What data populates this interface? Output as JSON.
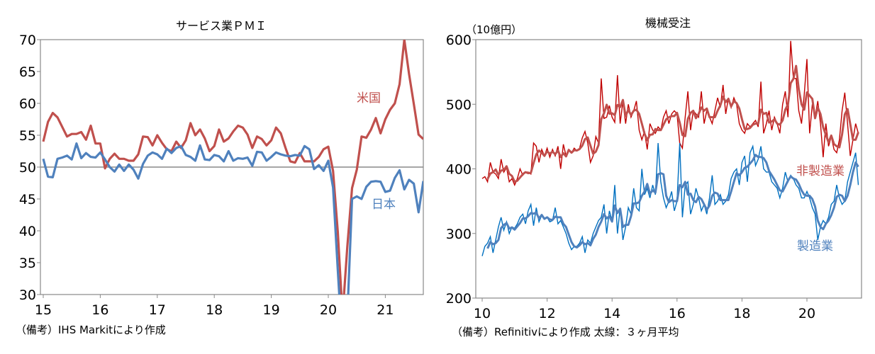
{
  "chart_data": [
    {
      "type": "line",
      "title": "サービス業ＰＭＩ",
      "note": "（備考）IHS Markitにより作成",
      "x_start": "2015-01",
      "x_frequency": "monthly",
      "xticks": [
        "15",
        "16",
        "17",
        "18",
        "19",
        "20",
        "21"
      ],
      "yticks": [
        30,
        35,
        40,
        45,
        50,
        55,
        60,
        65,
        70
      ],
      "ylim": [
        30,
        70
      ],
      "reference_line": 50,
      "grid": false,
      "series": [
        {
          "name": "米国",
          "color": "#c0504d",
          "values": [
            54.0,
            57.1,
            58.5,
            57.8,
            56.3,
            54.8,
            55.2,
            55.2,
            55.5,
            54.3,
            56.5,
            53.7,
            53.7,
            49.8,
            51.3,
            52.1,
            51.3,
            51.3,
            51.0,
            51.0,
            52.0,
            54.8,
            54.7,
            53.4,
            55.0,
            53.8,
            52.8,
            52.5,
            54.0,
            53.0,
            54.2,
            56.9,
            55.0,
            55.9,
            54.5,
            52.5,
            53.3,
            55.9,
            54.0,
            54.5,
            55.6,
            56.5,
            56.2,
            55.1,
            53.0,
            54.8,
            54.4,
            53.4,
            54.2,
            56.2,
            55.3,
            53.0,
            50.9,
            50.7,
            52.2,
            50.9,
            50.9,
            50.9,
            51.6,
            52.8,
            53.2,
            49.4,
            39.8,
            26.7,
            37.5,
            46.7,
            49.6,
            54.8,
            54.6,
            55.9,
            57.7,
            55.3,
            57.5,
            59.0,
            60.0,
            63.0,
            70.0,
            64.6,
            59.9,
            55.1,
            54.4
          ]
        },
        {
          "name": "日本",
          "color": "#4f81bd",
          "values": [
            51.3,
            48.5,
            48.4,
            51.3,
            51.5,
            51.8,
            51.2,
            53.7,
            51.4,
            52.2,
            51.6,
            51.5,
            52.3,
            51.2,
            50.0,
            49.3,
            50.4,
            49.4,
            50.4,
            49.6,
            48.2,
            50.5,
            51.8,
            52.3,
            52.0,
            51.3,
            52.9,
            52.2,
            53.0,
            53.3,
            51.9,
            51.6,
            51.0,
            53.4,
            51.2,
            51.1,
            51.9,
            51.7,
            50.9,
            52.5,
            51.0,
            51.4,
            51.3,
            51.5,
            50.2,
            52.4,
            52.3,
            51.0,
            51.6,
            52.3,
            52.0,
            51.8,
            51.7,
            51.9,
            51.8,
            53.3,
            52.8,
            49.7,
            50.3,
            49.4,
            51.0,
            46.8,
            33.8,
            21.5,
            26.5,
            45.0,
            45.4,
            45.0,
            46.9,
            47.7,
            47.8,
            47.7,
            46.1,
            46.3,
            48.3,
            49.5,
            46.5,
            48.0,
            47.4,
            42.9,
            47.8
          ]
        }
      ]
    },
    {
      "type": "line",
      "title": "機械受注",
      "ylabel": "（10億円）",
      "note": "（備考）Refinitivにより作成 太線：３ヶ月平均",
      "x_start": "2010-01",
      "x_frequency": "monthly",
      "xticks": [
        "10",
        "12",
        "14",
        "16",
        "18",
        "20"
      ],
      "yticks": [
        200,
        300,
        400,
        500,
        600
      ],
      "ylim": [
        200,
        600
      ],
      "grid": false,
      "moving_average": 3,
      "series": [
        {
          "name": "非製造業",
          "color": "#c00000",
          "ma_color": "#c0504d",
          "values": [
            385,
            388,
            380,
            410,
            395,
            392,
            385,
            415,
            395,
            402,
            380,
            385,
            375,
            385,
            400,
            390,
            395,
            395,
            392,
            440,
            435,
            410,
            430,
            420,
            432,
            418,
            430,
            420,
            435,
            400,
            438,
            420,
            430,
            425,
            432,
            428,
            432,
            448,
            458,
            440,
            410,
            420,
            450,
            440,
            540,
            478,
            480,
            498,
            480,
            472,
            545,
            470,
            505,
            470,
            500,
            480,
            490,
            505,
            460,
            445,
            458,
            430,
            470,
            460,
            455,
            465,
            460,
            480,
            490,
            470,
            485,
            490,
            485,
            440,
            432,
            480,
            520,
            460,
            490,
            485,
            480,
            520,
            470,
            490,
            480,
            470,
            490,
            510,
            495,
            530,
            485,
            510,
            495,
            510,
            500,
            470,
            460,
            455,
            470,
            465,
            470,
            475,
            465,
            535,
            455,
            470,
            490,
            460,
            480,
            470,
            455,
            500,
            520,
            480,
            598,
            540,
            540,
            490,
            470,
            515,
            570,
            455,
            500,
            480,
            505,
            470,
            418,
            470,
            435,
            450,
            430,
            425,
            445,
            490,
            518,
            470,
            420,
            445,
            470,
            455
          ]
        },
        {
          "name": "製造業",
          "color": "#0070c0",
          "ma_color": "#4f81bd",
          "values": [
            265,
            280,
            285,
            295,
            270,
            290,
            310,
            325,
            305,
            318,
            300,
            310,
            308,
            315,
            325,
            330,
            315,
            335,
            345,
            312,
            340,
            318,
            328,
            322,
            325,
            318,
            320,
            340,
            315,
            320,
            310,
            300,
            285,
            275,
            280,
            280,
            285,
            295,
            270,
            290,
            285,
            300,
            310,
            320,
            325,
            345,
            300,
            335,
            320,
            375,
            300,
            340,
            290,
            310,
            340,
            330,
            370,
            340,
            335,
            400,
            360,
            370,
            355,
            375,
            360,
            440,
            380,
            355,
            340,
            350,
            365,
            335,
            350,
            440,
            325,
            375,
            380,
            330,
            345,
            370,
            355,
            335,
            345,
            330,
            355,
            390,
            345,
            350,
            360,
            345,
            350,
            360,
            385,
            395,
            400,
            375,
            410,
            420,
            380,
            425,
            435,
            405,
            415,
            435,
            400,
            395,
            395,
            380,
            375,
            370,
            355,
            370,
            395,
            380,
            390,
            385,
            375,
            370,
            355,
            355,
            365,
            355,
            340,
            330,
            290,
            310,
            320,
            315,
            325,
            345,
            350,
            375,
            355,
            345,
            350,
            380,
            395,
            410,
            425,
            375
          ]
        }
      ]
    }
  ]
}
